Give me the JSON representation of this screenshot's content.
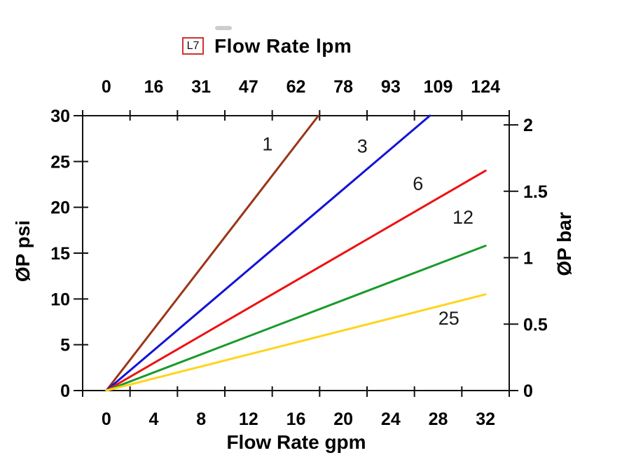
{
  "header": {
    "badge": "L7",
    "title": "Flow Rate lpm"
  },
  "axes": {
    "top": {
      "tick_labels": [
        "0",
        "16",
        "31",
        "47",
        "62",
        "78",
        "93",
        "109",
        "124"
      ]
    },
    "bottom": {
      "title": "Flow Rate gpm",
      "tick_labels": [
        "0",
        "4",
        "8",
        "12",
        "16",
        "20",
        "24",
        "28",
        "32"
      ]
    },
    "left": {
      "title": "ØP psi",
      "tick_labels": [
        "30",
        "25",
        "20",
        "15",
        "10",
        "5",
        "0"
      ]
    },
    "right": {
      "title": "ØP bar",
      "tick_labels": [
        "2",
        "1.5",
        "1",
        "0.5",
        "0"
      ]
    }
  },
  "chart_data": {
    "type": "line",
    "title": "Flow Rate lpm",
    "model_badge": "L7",
    "x_axis_bottom": {
      "label": "Flow Rate gpm",
      "ticks": [
        0,
        4,
        8,
        12,
        16,
        20,
        24,
        28,
        32
      ],
      "visible_range_gpm": [
        -2,
        34
      ]
    },
    "x_axis_top": {
      "label": "Flow Rate lpm",
      "ticks": [
        0,
        16,
        31,
        47,
        62,
        78,
        93,
        109,
        124
      ]
    },
    "y_axis_left": {
      "label": "ØP psi",
      "ticks": [
        0,
        5,
        10,
        15,
        20,
        25,
        30
      ],
      "range": [
        0,
        30
      ]
    },
    "y_axis_right": {
      "label": "ØP bar",
      "ticks": [
        0,
        0.5,
        1,
        1.5,
        2
      ],
      "range": [
        0,
        2
      ],
      "psi_per_bar": 14.5
    },
    "grid": false,
    "legend": "inline-labels",
    "series": [
      {
        "name": "1",
        "color": "#9B3517",
        "slope_psi_per_gpm": 1.68,
        "points_gpm_psi": [
          [
            0,
            0
          ],
          [
            17.9,
            30
          ]
        ],
        "label_pos_gpm_psi": [
          13.6,
          26.2
        ]
      },
      {
        "name": "3",
        "color": "#1313D6",
        "slope_psi_per_gpm": 1.1,
        "points_gpm_psi": [
          [
            0,
            0
          ],
          [
            27.3,
            30
          ]
        ],
        "label_pos_gpm_psi": [
          21.6,
          26.0
        ]
      },
      {
        "name": "6",
        "color": "#EE1111",
        "slope_psi_per_gpm": 0.75,
        "points_gpm_psi": [
          [
            0,
            0
          ],
          [
            32,
            24
          ]
        ],
        "label_pos_gpm_psi": [
          26.3,
          21.9
        ]
      },
      {
        "name": "12",
        "color": "#189A2A",
        "slope_psi_per_gpm": 0.49,
        "points_gpm_psi": [
          [
            0,
            0
          ],
          [
            32,
            15.8
          ]
        ],
        "label_pos_gpm_psi": [
          30.1,
          18.2
        ]
      },
      {
        "name": "25",
        "color": "#FFD41E",
        "slope_psi_per_gpm": 0.33,
        "points_gpm_psi": [
          [
            0,
            0
          ],
          [
            32,
            10.5
          ]
        ],
        "label_pos_gpm_psi": [
          28.9,
          7.2
        ]
      }
    ]
  }
}
